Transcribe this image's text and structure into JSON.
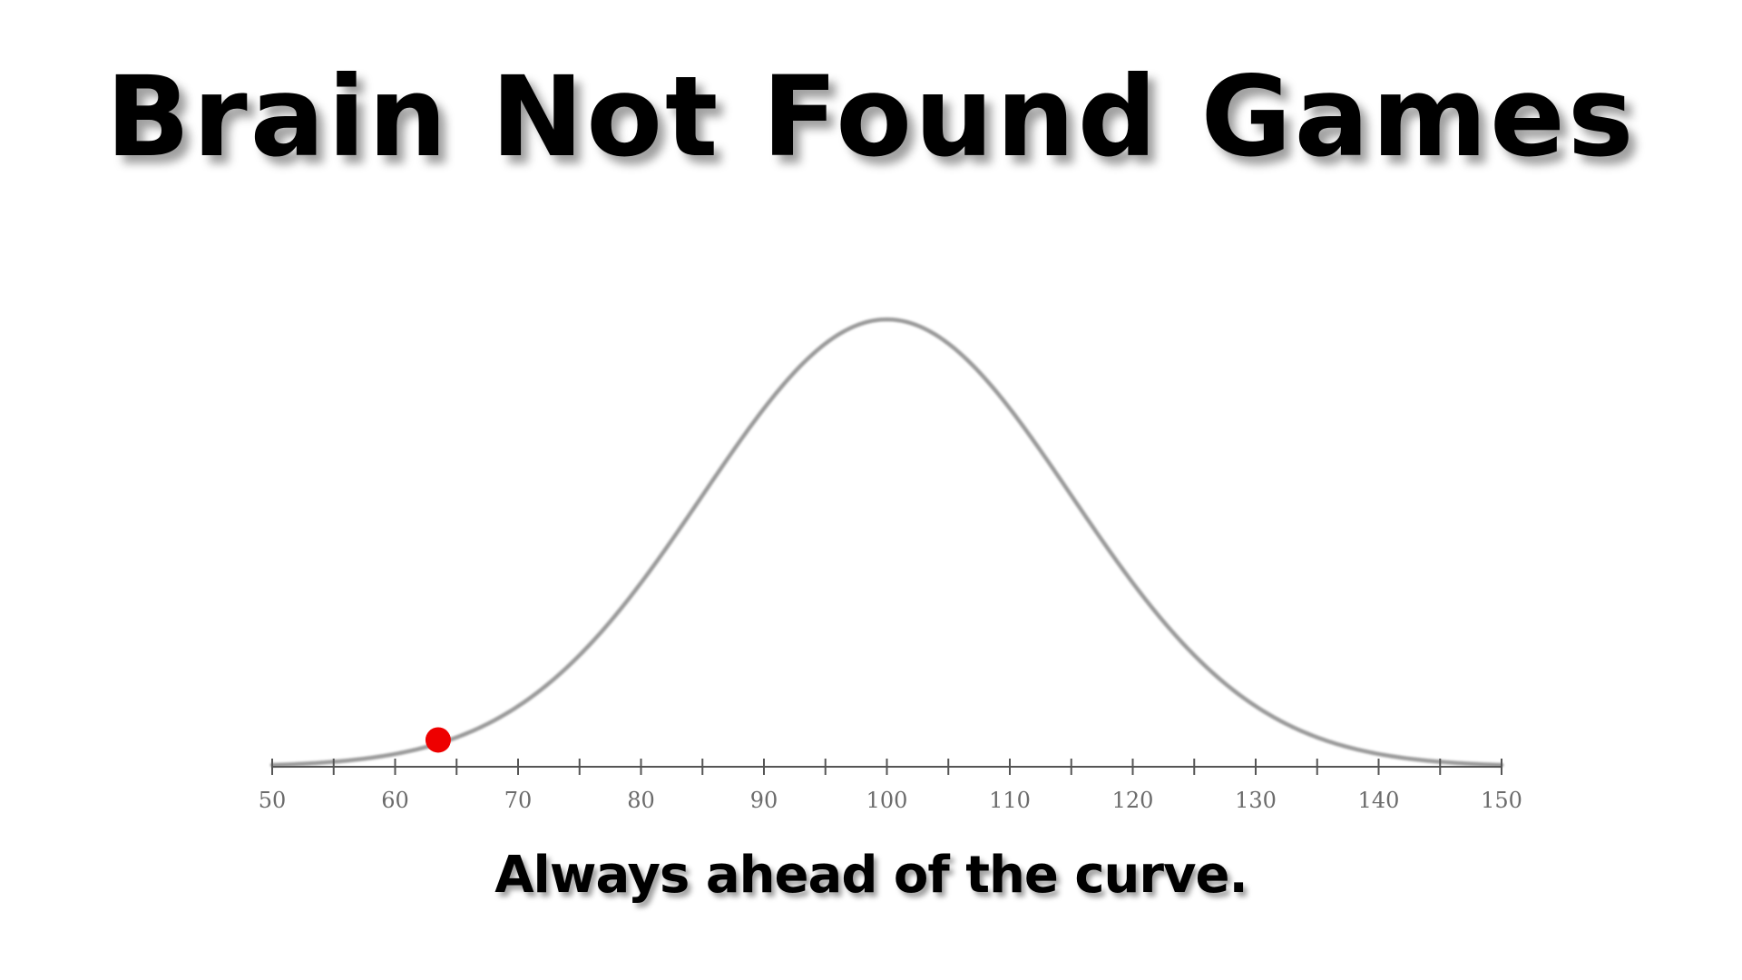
{
  "title": "Brain Not Found Games",
  "tagline": "Always ahead of the curve.",
  "colors": {
    "curve": "#9a9a9a",
    "axis": "#555555",
    "marker": "#ee0000",
    "text": "#000000"
  },
  "chart_data": {
    "type": "line",
    "description_curve": "normal",
    "mean": 100,
    "sd": 15,
    "xlim": [
      50,
      150
    ],
    "x_ticks": [
      50,
      60,
      70,
      80,
      90,
      100,
      110,
      120,
      130,
      140,
      150
    ],
    "x_tick_labels": [
      "50",
      "60",
      "70",
      "80",
      "90",
      "100",
      "110",
      "120",
      "130",
      "140",
      "150"
    ],
    "minor_tick_step": 5,
    "marker_x": 63.5,
    "grid": false,
    "title": "",
    "xlabel": "",
    "ylabel": ""
  }
}
